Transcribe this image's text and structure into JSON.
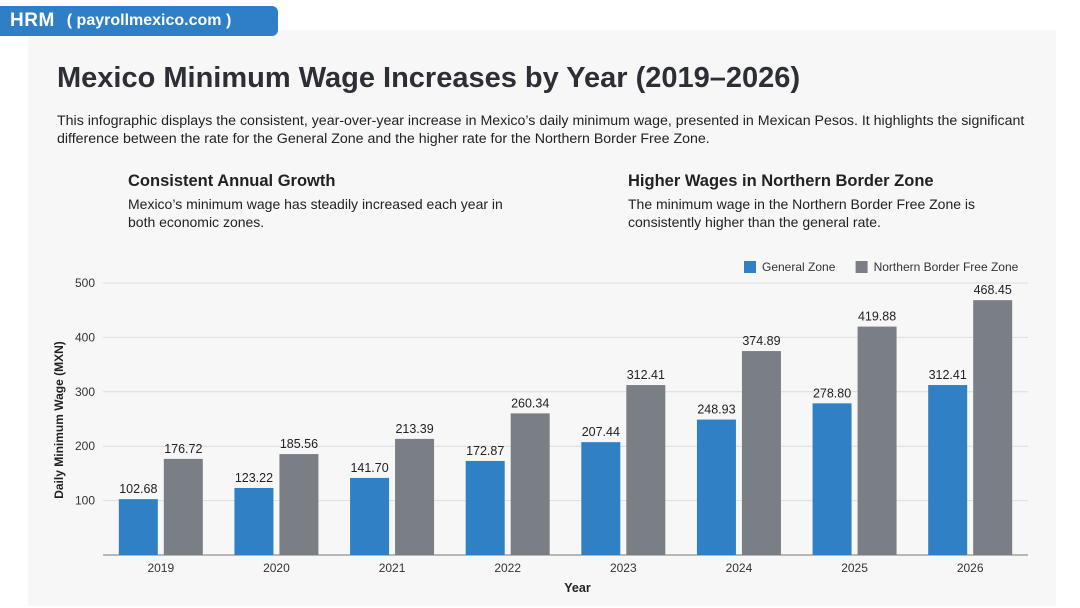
{
  "brand": {
    "logo": "HRM",
    "site": "( payrollmexico.com )",
    "color": "#2f7fc6"
  },
  "title": "Mexico Minimum Wage Increases by Year (2019–2026)",
  "description": "This infographic displays the consistent, year-over-year increase in Mexico’s daily minimum wage, presented in Mexican Pesos. It highlights the significant difference between the rate for the General Zone and the higher rate for the Northern Border Free Zone.",
  "cards": [
    {
      "heading": "Consistent Annual Growth",
      "text": "Mexico’s minimum wage has steadily increased each year in both economic zones."
    },
    {
      "heading": "Higher Wages in Northern Border Zone",
      "text": "The minimum wage in the Northern Border Free Zone is consistently higher than the general rate."
    }
  ],
  "chart_data": {
    "type": "bar",
    "xlabel": "Year",
    "ylabel": "Daily Minimum Wage (MXN)",
    "ylim": [
      0,
      500
    ],
    "yticks": [
      100,
      200,
      300,
      400,
      500
    ],
    "grid": true,
    "legend_position": "top-right",
    "categories": [
      "2019",
      "2020",
      "2021",
      "2022",
      "2023",
      "2024",
      "2025",
      "2026"
    ],
    "series": [
      {
        "name": "General Zone",
        "color": "#2f80c4",
        "values": [
          102.68,
          123.22,
          141.7,
          172.87,
          207.44,
          248.93,
          278.8,
          312.41
        ],
        "labels": [
          "102.68",
          "123.22",
          "141.70",
          "172.87",
          "207.44",
          "248.93",
          "278.80",
          "312.41"
        ]
      },
      {
        "name": "Northern Border Free Zone",
        "color": "#7a7f86",
        "values": [
          176.72,
          185.56,
          213.39,
          260.34,
          312.41,
          374.89,
          419.88,
          468.45
        ],
        "labels": [
          "176.72",
          "185.56",
          "213.39",
          "260.34",
          "312.41",
          "374.89",
          "419.88",
          "468.45"
        ]
      }
    ]
  }
}
